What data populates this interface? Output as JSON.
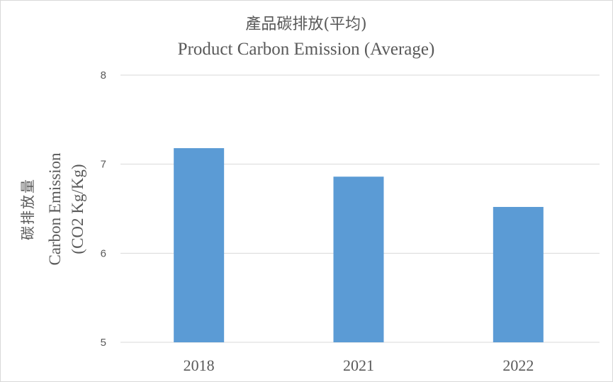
{
  "chart_data": {
    "type": "bar",
    "title": "產品碳排放(平均)",
    "subtitle": "Product Carbon Emission (Average)",
    "ylabel_zh": "碳排放量",
    "ylabel": "Carbon Emission",
    "ylabel_unit": "(CO2 Kg/Kg)",
    "xlabel": "",
    "categories": [
      "2018",
      "2021",
      "2022"
    ],
    "values": [
      7.18,
      6.86,
      6.52
    ],
    "ylim": [
      5,
      8
    ],
    "yticks": [
      5,
      6,
      7,
      8
    ],
    "grid": true,
    "bar_color": "#5b9bd5",
    "grid_color": "#d9d9d9"
  }
}
